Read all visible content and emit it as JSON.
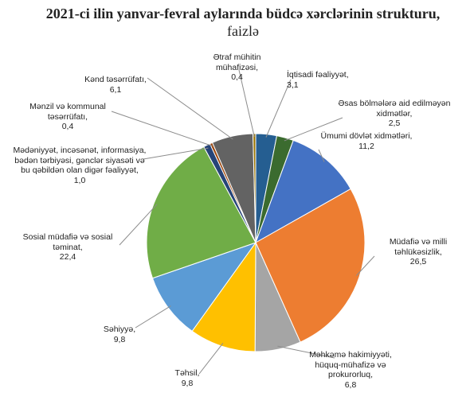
{
  "chart_data": {
    "type": "pie",
    "title": "2021-ci ilin yanvar-fevral aylarında büdcə xərclərinin strukturu,",
    "unit": "faizlə",
    "categories": [
      "İqtisadi fəaliyyət,",
      "Əsas bölmələrə aid edilməyən xidmətlər,",
      "Ümumi dövlət xidmətləri,",
      "Müdafiə və milli təhlükəsizlik,",
      "Məhkəmə hakimiyyəti, hüquq-mühafizə və prokurorluq,",
      "Təhsil,",
      "Səhiyyə,",
      "Sosial müdafiə və sosial təminat,",
      "Mədəniyyət, incəsənət, informasiya, bədən tərbiyəsi, gənclər siyasəti və bu qəbildən olan digər fəaliyyət,",
      "Mənzil və kommunal təsərrüfatı,",
      "Kənd təsərrüfatı,",
      "Ətraf mühitin mühafizəsi,"
    ],
    "values": [
      3.1,
      2.5,
      11.2,
      26.5,
      6.8,
      9.8,
      9.8,
      22.4,
      1.0,
      0.4,
      6.1,
      0.4
    ],
    "value_labels": [
      "3,1",
      "2,5",
      "11,2",
      "26,5",
      "6,8",
      "9,8",
      "9,8",
      "22,4",
      "1,0",
      "0,4",
      "6,1",
      "0,4"
    ],
    "colors": [
      "#255e91",
      "#3b6b2f",
      "#4472c4",
      "#ed7d31",
      "#a5a5a5",
      "#ffc000",
      "#5b9bd5",
      "#70ad47",
      "#264478",
      "#9e480e",
      "#636363",
      "#997300"
    ]
  }
}
